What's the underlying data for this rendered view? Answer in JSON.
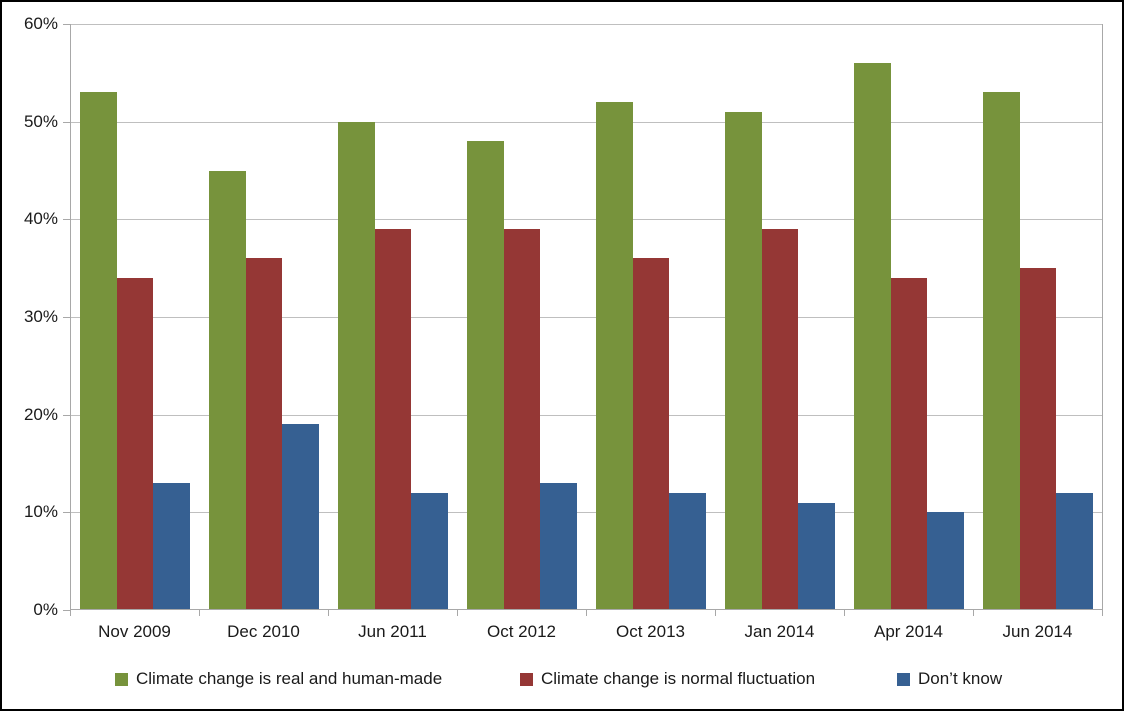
{
  "chart_data": {
    "type": "bar",
    "title": "",
    "categories": [
      "Nov 2009",
      "Dec 2010",
      "Jun 2011",
      "Oct 2012",
      "Oct 2013",
      "Jan 2014",
      "Apr 2014",
      "Jun 2014"
    ],
    "series": [
      {
        "name": "Climate change is real and human-made",
        "color": "#77933C",
        "values": [
          53,
          45,
          50,
          48,
          52,
          51,
          56,
          53
        ]
      },
      {
        "name": "Climate change is normal fluctuation",
        "color": "#953735",
        "values": [
          34,
          36,
          39,
          39,
          36,
          39,
          34,
          35
        ]
      },
      {
        "name": "Don’t know",
        "color": "#366092",
        "values": [
          13,
          19,
          12,
          13,
          12,
          11,
          10,
          12
        ]
      }
    ],
    "xlabel": "",
    "ylabel": "",
    "ylim": [
      0,
      60
    ],
    "ytick_step": 10,
    "yticklabels": [
      "0%",
      "10%",
      "20%",
      "30%",
      "40%",
      "50%",
      "60%"
    ],
    "grid": true,
    "legend_position": "bottom",
    "style": {
      "gridline_color": "#BFBFBF",
      "axis_color": "#A8A8A8",
      "text_color": "#1a1a1a",
      "background_color": "#FFFFFF",
      "border_color": "#000000"
    }
  }
}
